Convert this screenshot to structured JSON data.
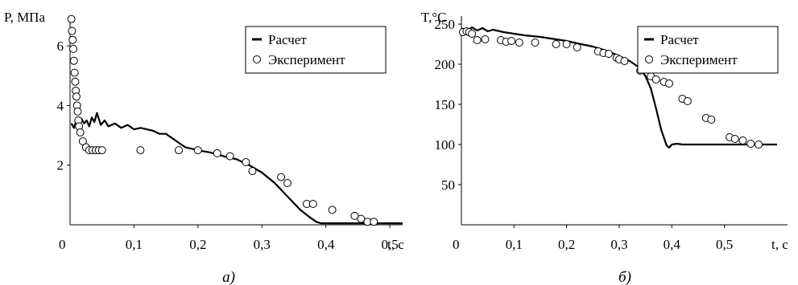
{
  "chart_data": [
    {
      "id": "a",
      "type": "line",
      "panel_label": "а)",
      "ylabel": "P, МПа",
      "xlabel": "t, с",
      "origin_label": "0",
      "xlim": [
        0,
        0.52
      ],
      "ylim": [
        0,
        7.0
      ],
      "x_ticks": [
        0.1,
        0.2,
        0.3,
        0.4,
        0.5
      ],
      "x_tick_labels": [
        "0,1",
        "0,2",
        "0,3",
        "0,4",
        "0,5"
      ],
      "y_ticks": [
        2,
        4,
        6
      ],
      "y_tick_labels": [
        "2",
        "4",
        "6"
      ],
      "legend": {
        "position": "top-right",
        "items": [
          "Расчет",
          "Эксперимент"
        ]
      },
      "series": [
        {
          "name": "Расчет",
          "style": "line",
          "x": [
            0.002,
            0.006,
            0.01,
            0.014,
            0.018,
            0.022,
            0.026,
            0.03,
            0.034,
            0.038,
            0.042,
            0.048,
            0.054,
            0.06,
            0.07,
            0.08,
            0.09,
            0.1,
            0.11,
            0.12,
            0.13,
            0.14,
            0.15,
            0.16,
            0.17,
            0.18,
            0.2,
            0.22,
            0.24,
            0.26,
            0.28,
            0.3,
            0.32,
            0.34,
            0.36,
            0.375,
            0.385,
            0.392,
            0.4,
            0.42,
            0.45,
            0.48,
            0.52
          ],
          "y": [
            3.4,
            3.25,
            3.5,
            3.35,
            3.55,
            3.4,
            3.5,
            3.3,
            3.6,
            3.45,
            3.75,
            3.35,
            3.5,
            3.3,
            3.4,
            3.25,
            3.35,
            3.2,
            3.25,
            3.2,
            3.15,
            3.05,
            3.05,
            2.9,
            2.75,
            2.6,
            2.5,
            2.42,
            2.3,
            2.2,
            2.0,
            1.75,
            1.4,
            0.95,
            0.5,
            0.25,
            0.1,
            0.05,
            0.05,
            0.05,
            0.05,
            0.05,
            0.05
          ]
        },
        {
          "name": "Эксперимент",
          "style": "markers",
          "x": [
            0.002,
            0.003,
            0.004,
            0.005,
            0.006,
            0.007,
            0.008,
            0.009,
            0.01,
            0.011,
            0.012,
            0.013,
            0.014,
            0.016,
            0.02,
            0.025,
            0.03,
            0.035,
            0.04,
            0.045,
            0.05,
            0.11,
            0.17,
            0.2,
            0.23,
            0.25,
            0.275,
            0.285,
            0.33,
            0.34,
            0.37,
            0.38,
            0.41,
            0.445,
            0.455,
            0.465,
            0.475
          ],
          "y": [
            6.9,
            6.5,
            6.2,
            5.9,
            5.5,
            5.1,
            4.8,
            4.5,
            4.3,
            4.0,
            3.8,
            3.5,
            3.3,
            3.1,
            2.8,
            2.6,
            2.5,
            2.5,
            2.5,
            2.5,
            2.5,
            2.5,
            2.5,
            2.5,
            2.4,
            2.3,
            2.1,
            1.8,
            1.6,
            1.4,
            0.7,
            0.7,
            0.5,
            0.3,
            0.2,
            0.1,
            0.1
          ]
        }
      ]
    },
    {
      "id": "b",
      "type": "line",
      "panel_label": "б)",
      "ylabel": "T,°C",
      "xlabel": "t, с",
      "origin_label": "0",
      "xlim": [
        0,
        0.62
      ],
      "ylim": [
        0,
        260
      ],
      "x_ticks": [
        0.1,
        0.2,
        0.3,
        0.4,
        0.5
      ],
      "x_tick_labels": [
        "0,1",
        "0,2",
        "0,3",
        "0,4",
        "0,5"
      ],
      "y_ticks": [
        50,
        100,
        150,
        200,
        250
      ],
      "y_tick_labels": [
        "50",
        "100",
        "150",
        "200",
        "250"
      ],
      "legend": {
        "position": "top-right",
        "items": [
          "Расчет",
          "Эксперимент"
        ]
      },
      "series": [
        {
          "name": "Расчет",
          "style": "line",
          "x": [
            0.0,
            0.01,
            0.02,
            0.03,
            0.04,
            0.05,
            0.06,
            0.08,
            0.1,
            0.12,
            0.15,
            0.18,
            0.2,
            0.22,
            0.25,
            0.28,
            0.3,
            0.32,
            0.34,
            0.35,
            0.36,
            0.37,
            0.38,
            0.39,
            0.395,
            0.4,
            0.41,
            0.42,
            0.45,
            0.5,
            0.55,
            0.6
          ],
          "y": [
            245,
            241,
            246,
            242,
            245,
            241,
            243,
            240,
            238,
            236,
            234,
            231,
            229,
            226,
            222,
            216,
            210,
            204,
            195,
            185,
            170,
            145,
            118,
            99,
            96,
            100,
            101,
            100,
            100,
            100,
            100,
            100
          ]
        },
        {
          "name": "Эксперимент",
          "style": "markers",
          "x": [
            0.003,
            0.01,
            0.015,
            0.02,
            0.03,
            0.045,
            0.075,
            0.085,
            0.095,
            0.11,
            0.14,
            0.18,
            0.2,
            0.22,
            0.26,
            0.27,
            0.28,
            0.295,
            0.3,
            0.31,
            0.34,
            0.36,
            0.37,
            0.385,
            0.395,
            0.42,
            0.43,
            0.465,
            0.475,
            0.51,
            0.52,
            0.535,
            0.55,
            0.565
          ],
          "y": [
            240,
            241,
            240,
            238,
            230,
            231,
            230,
            228,
            229,
            227,
            227,
            225,
            225,
            221,
            216,
            214,
            213,
            208,
            206,
            204,
            192,
            185,
            181,
            178,
            176,
            157,
            154,
            133,
            131,
            109,
            107,
            105,
            101,
            100
          ]
        }
      ]
    }
  ]
}
